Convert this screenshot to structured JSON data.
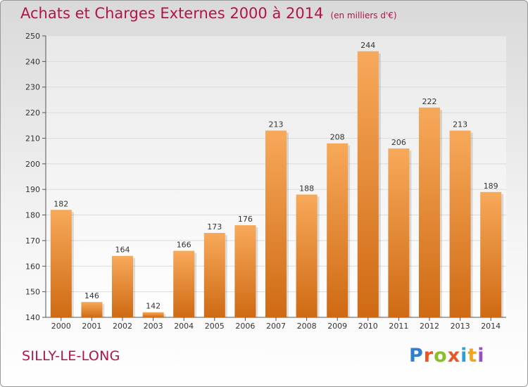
{
  "header": {
    "title": "Achats et Charges Externes 2000 à 2014",
    "unit": "(en milliers d'€)"
  },
  "footer": {
    "commune": "SILLY-LE-LONG",
    "logo_letters": [
      "P",
      "r",
      "o",
      "x",
      "i",
      "t",
      "i"
    ],
    "logo_colors": [
      "#2f7fd0",
      "#e8572a",
      "#8bbf2a",
      "#e8572a",
      "#2f9fd6",
      "#f2a41c",
      "#9a4fbf"
    ]
  },
  "colors": {
    "title": "#b5124a",
    "bar_light": "#f7a95a",
    "bar_dark": "#cf6a14",
    "grid": "#dcdcdc"
  },
  "chart_data": {
    "type": "bar",
    "title": "Achats et Charges Externes 2000 à 2014",
    "ylabel": "(en milliers d'€)",
    "categories": [
      "2000",
      "2001",
      "2002",
      "2003",
      "2004",
      "2005",
      "2006",
      "2007",
      "2008",
      "2009",
      "2010",
      "2011",
      "2012",
      "2013",
      "2014"
    ],
    "values": [
      182,
      146,
      164,
      142,
      166,
      173,
      176,
      213,
      188,
      208,
      244,
      206,
      222,
      213,
      189
    ],
    "yticks": [
      140,
      150,
      160,
      170,
      180,
      190,
      200,
      210,
      220,
      230,
      240,
      250
    ],
    "ylim": [
      140,
      250
    ],
    "grid": true
  }
}
